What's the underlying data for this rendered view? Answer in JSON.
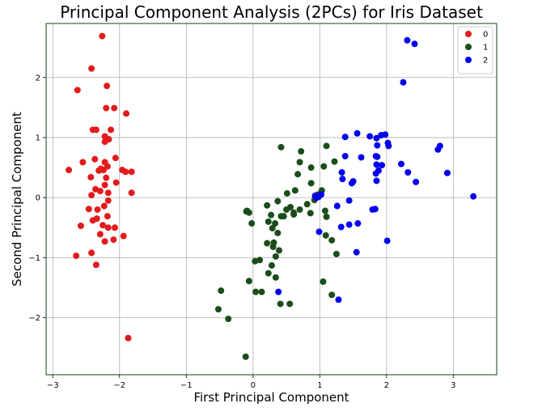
{
  "chart_data": {
    "type": "scatter",
    "title": "Principal Component Analysis (2PCs) for Iris Dataset",
    "xlabel": "First Principal Component",
    "ylabel": "Second Principal Component",
    "xlim": [
      -3.1,
      3.65
    ],
    "ylim": [
      -2.95,
      2.9
    ],
    "xticks": [
      -3,
      -2,
      -1,
      0,
      1,
      2,
      3
    ],
    "yticks": [
      -2,
      -1,
      0,
      1,
      2
    ],
    "xtick_labels": [
      "−3",
      "−2",
      "−1",
      "0",
      "1",
      "2",
      "3"
    ],
    "ytick_labels": [
      "−2",
      "−1",
      "0",
      "1",
      "2"
    ],
    "grid": true,
    "legend_position": "top-right",
    "series": [
      {
        "name": "0",
        "color": "#e41a1c",
        "points": [
          [
            -2.26,
            2.69
          ],
          [
            -2.42,
            2.15
          ],
          [
            -2.19,
            1.86
          ],
          [
            -2.63,
            1.79
          ],
          [
            -2.2,
            1.49
          ],
          [
            -2.08,
            1.49
          ],
          [
            -1.9,
            1.4
          ],
          [
            -2.4,
            1.13
          ],
          [
            -2.35,
            1.13
          ],
          [
            -2.13,
            1.13
          ],
          [
            -2.22,
            1.02
          ],
          [
            -2.19,
            0.98
          ],
          [
            -2.16,
            0.97
          ],
          [
            -2.22,
            0.93
          ],
          [
            -2.37,
            0.64
          ],
          [
            -2.55,
            0.59
          ],
          [
            -2.22,
            0.59
          ],
          [
            -2.06,
            0.66
          ],
          [
            -2.18,
            0.52
          ],
          [
            -2.28,
            0.48
          ],
          [
            -2.31,
            0.45
          ],
          [
            -2.24,
            0.46
          ],
          [
            -1.96,
            0.46
          ],
          [
            -1.91,
            0.43
          ],
          [
            -1.82,
            0.43
          ],
          [
            -2.76,
            0.46
          ],
          [
            -2.43,
            0.34
          ],
          [
            -2.2,
            0.33
          ],
          [
            -2.05,
            0.25
          ],
          [
            -2.36,
            0.14
          ],
          [
            -2.29,
            0.11
          ],
          [
            -2.22,
            0.21
          ],
          [
            -2.17,
            0.08
          ],
          [
            -2.42,
            0.04
          ],
          [
            -1.82,
            0.08
          ],
          [
            -2.17,
            -0.05
          ],
          [
            -2.23,
            -0.14
          ],
          [
            -2.46,
            -0.19
          ],
          [
            -2.33,
            -0.2
          ],
          [
            -2.18,
            -0.31
          ],
          [
            -2.34,
            -0.35
          ],
          [
            -2.4,
            -0.38
          ],
          [
            -2.58,
            -0.47
          ],
          [
            -2.25,
            -0.46
          ],
          [
            -2.17,
            -0.5
          ],
          [
            -2.07,
            -0.5
          ],
          [
            -2.29,
            -0.61
          ],
          [
            -1.94,
            -0.64
          ],
          [
            -2.22,
            -0.73
          ],
          [
            -2.09,
            -0.7
          ],
          [
            -2.42,
            -0.92
          ],
          [
            -2.65,
            -0.97
          ],
          [
            -2.35,
            -1.12
          ],
          [
            -1.87,
            -2.34
          ]
        ]
      },
      {
        "name": "1",
        "color": "#1a4d1a",
        "points": [
          [
            0.42,
            0.84
          ],
          [
            1.1,
            0.86
          ],
          [
            0.72,
            0.77
          ],
          [
            0.7,
            0.59
          ],
          [
            0.87,
            0.5
          ],
          [
            1.06,
            0.52
          ],
          [
            0.67,
            0.39
          ],
          [
            0.87,
            0.24
          ],
          [
            1.22,
            0.6
          ],
          [
            0.63,
            0.12
          ],
          [
            0.51,
            0.07
          ],
          [
            0.37,
            -0.06
          ],
          [
            0.21,
            -0.13
          ],
          [
            -0.09,
            -0.22
          ],
          [
            0.5,
            -0.2
          ],
          [
            0.61,
            -0.25
          ],
          [
            0.81,
            -0.11
          ],
          [
            0.92,
            -0.04
          ],
          [
            0.97,
            0.05
          ],
          [
            1.03,
            0.12
          ],
          [
            0.56,
            -0.16
          ],
          [
            0.27,
            -0.29
          ],
          [
            0.42,
            -0.31
          ],
          [
            0.46,
            -0.31
          ],
          [
            0.33,
            -0.43
          ],
          [
            0.7,
            -0.2
          ],
          [
            0.61,
            -0.28
          ],
          [
            0.86,
            -0.26
          ],
          [
            -0.06,
            -0.25
          ],
          [
            -0.1,
            -0.23
          ],
          [
            0.23,
            -0.4
          ],
          [
            -0.02,
            -0.43
          ],
          [
            0.29,
            -0.51
          ],
          [
            0.37,
            -0.59
          ],
          [
            1.08,
            -0.22
          ],
          [
            1.1,
            -0.32
          ],
          [
            0.21,
            -0.76
          ],
          [
            0.31,
            -0.75
          ],
          [
            0.3,
            -0.82
          ],
          [
            1.09,
            -0.63
          ],
          [
            1.18,
            -0.71
          ],
          [
            0.39,
            -0.88
          ],
          [
            0.34,
            -0.98
          ],
          [
            0.1,
            -1.04
          ],
          [
            0.03,
            -1.06
          ],
          [
            0.28,
            -1.13
          ],
          [
            1.25,
            -0.94
          ],
          [
            0.23,
            -1.26
          ],
          [
            0.34,
            -1.33
          ],
          [
            -0.06,
            -1.39
          ],
          [
            1.05,
            -1.4
          ],
          [
            -0.48,
            -1.55
          ],
          [
            0.04,
            -1.57
          ],
          [
            0.13,
            -1.57
          ],
          [
            1.18,
            -1.62
          ],
          [
            0.41,
            -1.77
          ],
          [
            0.55,
            -1.77
          ],
          [
            -0.52,
            -1.86
          ],
          [
            -0.37,
            -2.02
          ],
          [
            -0.11,
            -2.65
          ]
        ]
      },
      {
        "name": "2",
        "color": "#0000ee",
        "points": [
          [
            2.31,
            2.62
          ],
          [
            2.42,
            2.56
          ],
          [
            2.25,
            1.92
          ],
          [
            1.56,
            1.07
          ],
          [
            1.75,
            1.02
          ],
          [
            1.38,
            1.01
          ],
          [
            1.92,
            1.04
          ],
          [
            1.98,
            1.05
          ],
          [
            1.85,
            0.99
          ],
          [
            2.02,
            0.91
          ],
          [
            2.03,
            0.86
          ],
          [
            1.86,
            0.87
          ],
          [
            2.8,
            0.86
          ],
          [
            2.77,
            0.8
          ],
          [
            1.84,
            0.69
          ],
          [
            1.86,
            0.68
          ],
          [
            1.62,
            0.67
          ],
          [
            1.38,
            0.69
          ],
          [
            2.22,
            0.56
          ],
          [
            1.85,
            0.55
          ],
          [
            1.88,
            0.45
          ],
          [
            1.84,
            0.4
          ],
          [
            2.32,
            0.42
          ],
          [
            1.33,
            0.42
          ],
          [
            2.91,
            0.41
          ],
          [
            1.93,
            0.54
          ],
          [
            1.5,
            0.27
          ],
          [
            1.48,
            0.24
          ],
          [
            1.85,
            0.28
          ],
          [
            2.44,
            0.26
          ],
          [
            1.34,
            0.31
          ],
          [
            0.93,
            0.03
          ],
          [
            0.98,
            0.01
          ],
          [
            1.02,
            0.05
          ],
          [
            0.95,
            0.0
          ],
          [
            1.44,
            -0.05
          ],
          [
            1.26,
            -0.14
          ],
          [
            1.79,
            -0.2
          ],
          [
            1.83,
            -0.19
          ],
          [
            3.3,
            0.02
          ],
          [
            1.57,
            -0.43
          ],
          [
            1.44,
            -0.45
          ],
          [
            1.32,
            -0.49
          ],
          [
            0.99,
            -0.57
          ],
          [
            2.01,
            -0.72
          ],
          [
            1.55,
            -0.91
          ],
          [
            0.38,
            -1.57
          ],
          [
            1.28,
            -1.7
          ]
        ]
      }
    ]
  }
}
